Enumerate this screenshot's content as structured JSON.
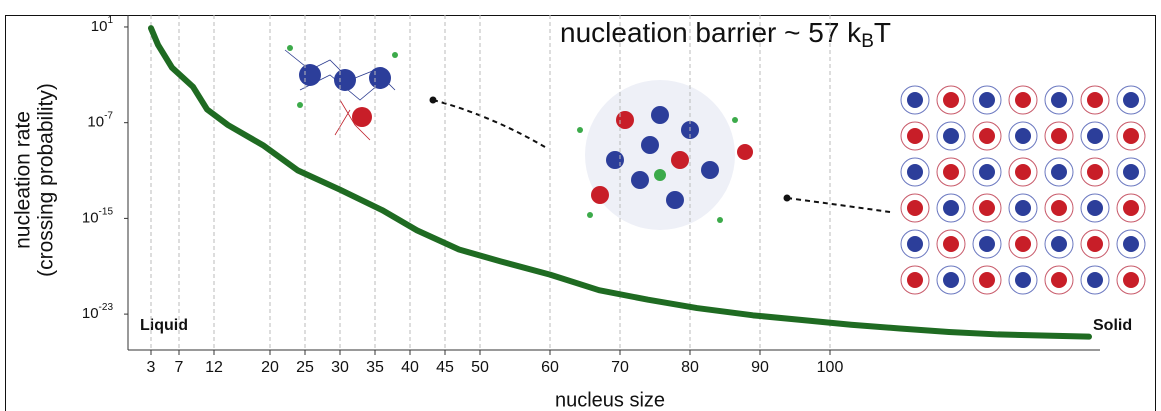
{
  "chart_data": {
    "type": "line",
    "title": {
      "text": "nucleation barrier ~ 57 k",
      "subscript": "B",
      "suffix": "T"
    },
    "x_label": "nucleus size",
    "y_label": [
      "nucleation rate",
      "(crossing probability)"
    ],
    "annotations": [
      "Liquid",
      "Solid"
    ],
    "x": [
      3,
      4,
      6,
      9,
      11,
      14,
      19,
      24,
      30,
      36,
      41,
      47,
      53,
      60,
      67,
      74,
      81,
      89,
      96,
      103,
      110,
      117,
      124,
      131,
      137
    ],
    "values": [
      7.9,
      0.32,
      0.004,
      0.0001,
      1.3e-06,
      6.3e-08,
      1.3e-09,
      1e-11,
      2.5e-13,
      5e-15,
      1e-16,
      2.5e-18,
      2.5e-19,
      2e-20,
      1e-21,
      1.6e-22,
      3.2e-23,
      7.9e-24,
      3.2e-24,
      1.3e-24,
      6.3e-25,
      3.2e-25,
      2e-25,
      1.6e-25,
      1.3e-25
    ],
    "color": "#1f6b22",
    "xlim": [
      0,
      146
    ],
    "xticks": [
      3,
      7,
      12,
      20,
      25,
      30,
      35,
      40,
      45,
      50,
      60,
      70,
      80,
      90,
      100
    ],
    "ylim": [
      1e-26,
      100
    ],
    "log_y": true,
    "yticks": [
      {
        "value": 10,
        "label": "10",
        "exponent": "1"
      },
      {
        "value": 1e-07,
        "label": "10",
        "exponent": "-7"
      },
      {
        "value": 1e-15,
        "label": "10",
        "exponent": "-15"
      },
      {
        "value": 1e-23,
        "label": "10",
        "exponent": "-23"
      }
    ],
    "grid": true
  }
}
